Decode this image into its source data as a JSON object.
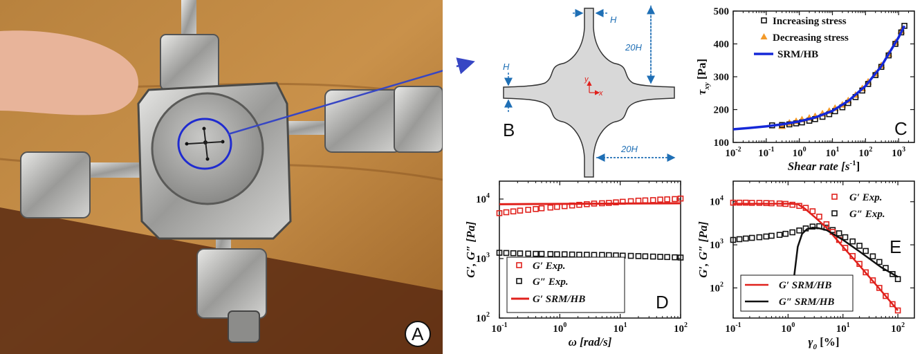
{
  "figure": {
    "panels": {
      "A": "A",
      "B": "B",
      "C": "C",
      "D": "D",
      "E": "E"
    }
  },
  "geometry_labels": {
    "H_top": "H",
    "H_left": "H",
    "len_vertical": "20H",
    "len_horizontal": "20H",
    "axis_y": "y",
    "axis_x": "x"
  },
  "colors": {
    "red": "#e0211c",
    "orange": "#f39a2a",
    "blue": "#1528d8",
    "black": "#111111",
    "dim_blue": "#1f6fb5",
    "gray_fill": "#d8d8d8",
    "arrow_blue": "#3746c4"
  },
  "chart_data": [
    {
      "panel": "C",
      "type": "scatter",
      "xscale": "log",
      "xlim": [
        0.01,
        3000
      ],
      "ylim": [
        100,
        500
      ],
      "xticks": [
        "10",
        "10",
        "10",
        "10",
        "10",
        "10"
      ],
      "xtick_exp": [
        "-2",
        "-1",
        "0",
        "1",
        "2",
        "3"
      ],
      "yticks": [
        "100",
        "200",
        "300",
        "400",
        "500"
      ],
      "xlabel": "Shear rate [s",
      "xlabel_sup": "-1",
      "xlabel_end": "]",
      "ylabel_tau": "τ",
      "ylabel_sub": "xy",
      "ylabel_unit": " [Pa]",
      "series": [
        {
          "name": "Increasing stress",
          "marker": "square",
          "x": [
            0.15,
            0.3,
            0.5,
            0.8,
            1.2,
            2,
            3,
            5,
            8,
            12,
            20,
            30,
            50,
            80,
            120,
            200,
            300,
            500,
            800,
            1200,
            1500
          ],
          "y": [
            152,
            153,
            155,
            158,
            161,
            166,
            171,
            178,
            186,
            195,
            207,
            220,
            238,
            258,
            278,
            305,
            330,
            365,
            400,
            435,
            455
          ]
        },
        {
          "name": "Decreasing stress",
          "marker": "triangle",
          "x": [
            0.3,
            0.5,
            0.8,
            1.2,
            2,
            3,
            5,
            8,
            12,
            20,
            30,
            50,
            80,
            120,
            200,
            300,
            500,
            800,
            1200
          ],
          "y": [
            150,
            160,
            165,
            170,
            175,
            180,
            188,
            196,
            205,
            215,
            228,
            245,
            265,
            285,
            310,
            335,
            370,
            405,
            440
          ]
        },
        {
          "name": "SRM/HB",
          "marker": "line",
          "x": [
            0.01,
            0.03,
            0.1,
            0.3,
            1,
            3,
            10,
            30,
            100,
            300,
            1000,
            1500
          ],
          "y": [
            140,
            144,
            149,
            155,
            164,
            176,
            196,
            226,
            272,
            332,
            420,
            455
          ]
        }
      ]
    },
    {
      "panel": "D",
      "type": "scatter",
      "xscale": "log",
      "yscale": "log",
      "xlim": [
        0.1,
        100
      ],
      "ylim": [
        100,
        20000
      ],
      "xticks": [
        "10",
        "10",
        "10",
        "10"
      ],
      "xtick_exp": [
        "-1",
        "0",
        "1",
        "2"
      ],
      "yticks": [
        "10",
        "10",
        "10"
      ],
      "ytick_exp": [
        "2",
        "3",
        "4"
      ],
      "xlabel": "ω [rad/s]",
      "ylabel": "G′, G″ [Pa]",
      "series": [
        {
          "name": "G′ Exp.",
          "marker": "square-open",
          "x": [
            0.1,
            0.13,
            0.17,
            0.22,
            0.3,
            0.4,
            0.5,
            0.7,
            0.9,
            1.2,
            1.6,
            2.1,
            2.8,
            3.7,
            5,
            6.5,
            8.5,
            11,
            15,
            20,
            26,
            35,
            46,
            60,
            80,
            100
          ],
          "y": [
            5800,
            6000,
            6200,
            6400,
            6600,
            6800,
            7000,
            7200,
            7400,
            7600,
            7800,
            8000,
            8200,
            8400,
            8500,
            8600,
            8800,
            9000,
            9200,
            9400,
            9500,
            9600,
            9800,
            9900,
            10000,
            10200
          ]
        },
        {
          "name": "G″ Exp.",
          "marker": "square-open",
          "x": [
            0.1,
            0.13,
            0.17,
            0.22,
            0.3,
            0.4,
            0.5,
            0.7,
            0.9,
            1.2,
            1.6,
            2.1,
            2.8,
            3.7,
            5,
            6.5,
            8.5,
            11,
            15,
            20,
            26,
            35,
            46,
            60,
            80,
            100
          ],
          "y": [
            1250,
            1240,
            1230,
            1220,
            1210,
            1200,
            1200,
            1190,
            1180,
            1180,
            1170,
            1160,
            1160,
            1150,
            1150,
            1140,
            1130,
            1120,
            1110,
            1100,
            1090,
            1080,
            1070,
            1060,
            1050,
            1040
          ]
        },
        {
          "name": "G′ SRM/HB",
          "marker": "line",
          "x": [
            0.1,
            1,
            10,
            100
          ],
          "y": [
            8200,
            8300,
            8400,
            8500
          ]
        }
      ]
    },
    {
      "panel": "E",
      "type": "scatter",
      "xscale": "log",
      "yscale": "log",
      "xlim": [
        0.1,
        200
      ],
      "ylim": [
        20,
        30000
      ],
      "xticks": [
        "10",
        "10",
        "10",
        "10"
      ],
      "xtick_exp": [
        "-1",
        "0",
        "1",
        "2"
      ],
      "yticks": [
        "10",
        "10",
        "10"
      ],
      "ytick_exp": [
        "2",
        "3",
        "4"
      ],
      "xlabel": "γ",
      "xlabel_sub": "0",
      "xlabel_end": " [%]",
      "ylabel": "G′, G″ [Pa]",
      "series": [
        {
          "name": "G′ Exp.",
          "marker": "square-open",
          "x": [
            0.1,
            0.13,
            0.17,
            0.22,
            0.3,
            0.4,
            0.5,
            0.7,
            0.9,
            1.2,
            1.6,
            2.1,
            2.8,
            3.7,
            5,
            6.5,
            8.5,
            11,
            15,
            20,
            26,
            35,
            46,
            60,
            80,
            100
          ],
          "y": [
            9500,
            9500,
            9500,
            9400,
            9400,
            9300,
            9200,
            9100,
            8900,
            8500,
            8000,
            7200,
            6000,
            4500,
            3000,
            2000,
            1300,
            850,
            550,
            360,
            230,
            150,
            100,
            65,
            42,
            30
          ]
        },
        {
          "name": "G″ Exp.",
          "marker": "square-open",
          "x": [
            0.1,
            0.13,
            0.17,
            0.22,
            0.3,
            0.4,
            0.5,
            0.7,
            0.9,
            1.2,
            1.6,
            2.1,
            2.8,
            3.7,
            5,
            6.5,
            8.5,
            11,
            15,
            20,
            26,
            35,
            46,
            60,
            80,
            100
          ],
          "y": [
            1300,
            1350,
            1400,
            1450,
            1500,
            1560,
            1620,
            1700,
            1800,
            1950,
            2150,
            2400,
            2650,
            2700,
            2500,
            2200,
            1850,
            1500,
            1200,
            950,
            720,
            540,
            400,
            290,
            210,
            160
          ]
        },
        {
          "name": "G′ SRM/HB",
          "marker": "line",
          "x": [
            0.1,
            0.5,
            1,
            1.5,
            2,
            3,
            5,
            10,
            20,
            50,
            100
          ],
          "y": [
            9000,
            9000,
            9000,
            8800,
            7000,
            4500,
            2500,
            900,
            330,
            85,
            30
          ]
        },
        {
          "name": "G″ SRM/HB",
          "marker": "line",
          "x": [
            1.2,
            1.3,
            1.5,
            1.8,
            2.2,
            2.8,
            3.5,
            5,
            10,
            20,
            50,
            100
          ],
          "y": [
            40,
            200,
            900,
            1800,
            2300,
            2500,
            2450,
            2200,
            1300,
            700,
            300,
            180
          ]
        }
      ]
    }
  ]
}
